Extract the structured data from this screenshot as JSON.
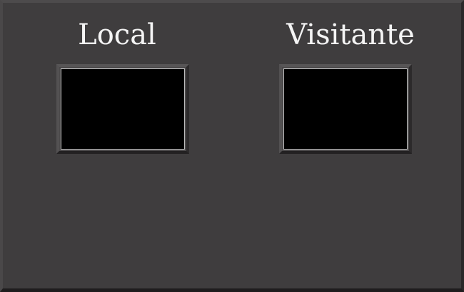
{
  "scoreboard": {
    "local": {
      "label": "Local",
      "score": ""
    },
    "visitor": {
      "label": "Visitante",
      "score": ""
    }
  },
  "colors": {
    "background": "#3f3d3e",
    "label_text": "#f4f4f4",
    "display_background": "#000000",
    "display_border": "#bdbdbd"
  }
}
